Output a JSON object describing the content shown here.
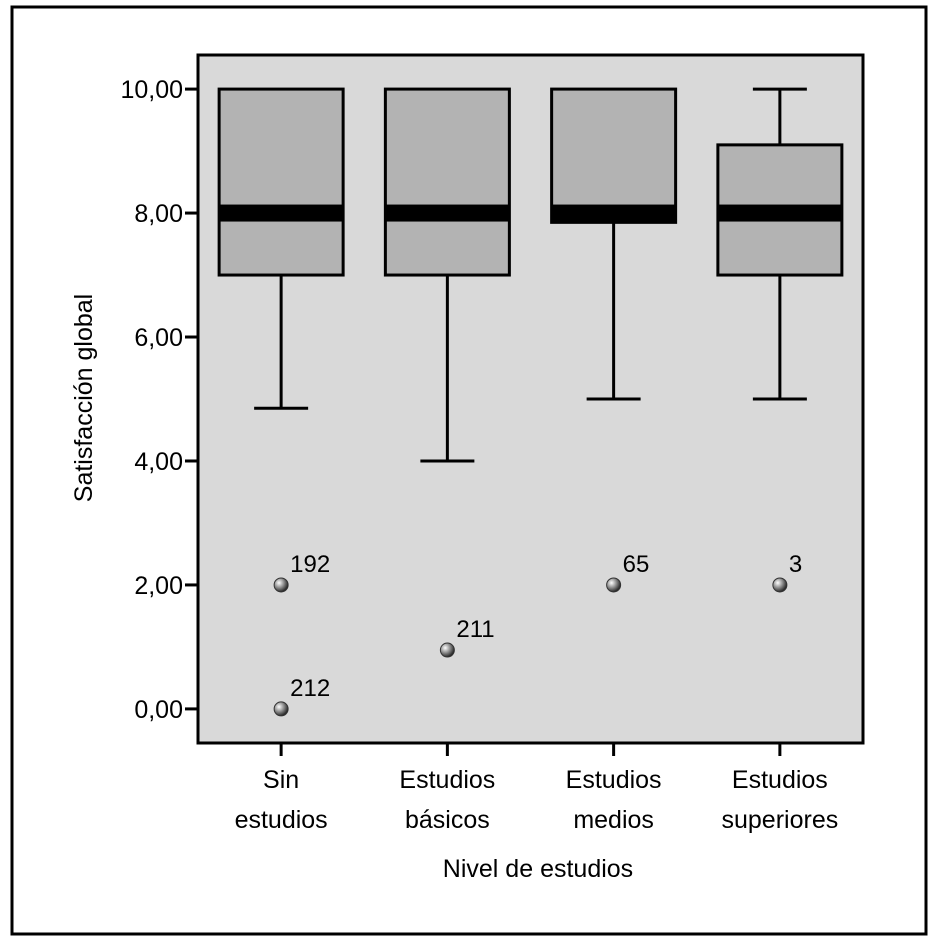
{
  "chart_data": {
    "type": "boxplot",
    "title": "",
    "xlabel": "Nivel de estudios",
    "ylabel": "Satisfacción global",
    "ylim": [
      -0.55,
      10.55
    ],
    "yticks": [
      {
        "value": 0,
        "label": "0,00"
      },
      {
        "value": 2,
        "label": "2,00"
      },
      {
        "value": 4,
        "label": "4,00"
      },
      {
        "value": 6,
        "label": "6,00"
      },
      {
        "value": 8,
        "label": "8,00"
      },
      {
        "value": 10,
        "label": "10,00"
      }
    ],
    "grid": false,
    "categories": [
      {
        "lines": [
          "Sin",
          "estudios"
        ],
        "whisker_low": 4.85,
        "q1": 7.0,
        "median": 8.0,
        "q3": 10.0,
        "whisker_high": 10.0,
        "outliers": [
          {
            "value": 2.0,
            "label": "192"
          },
          {
            "value": 0.0,
            "label": "212"
          }
        ]
      },
      {
        "lines": [
          "Estudios",
          "básicos"
        ],
        "whisker_low": 4.0,
        "q1": 7.0,
        "median": 8.0,
        "q3": 10.0,
        "whisker_high": 10.0,
        "outliers": [
          {
            "value": 0.95,
            "label": "211"
          }
        ]
      },
      {
        "lines": [
          "Estudios",
          "medios"
        ],
        "whisker_low": 5.0,
        "q1": 7.85,
        "median": 8.0,
        "q3": 10.0,
        "whisker_high": 10.0,
        "outliers": [
          {
            "value": 2.0,
            "label": "65"
          }
        ]
      },
      {
        "lines": [
          "Estudios",
          "superiores"
        ],
        "whisker_low": 5.0,
        "q1": 7.0,
        "median": 8.0,
        "q3": 9.1,
        "whisker_high": 10.0,
        "outliers": [
          {
            "value": 2.0,
            "label": "3"
          }
        ]
      }
    ],
    "colors": {
      "plot_background": "#d9d9d9",
      "box_fill": "#b3b3b3",
      "median": "#000000",
      "outline": "#000000"
    }
  }
}
